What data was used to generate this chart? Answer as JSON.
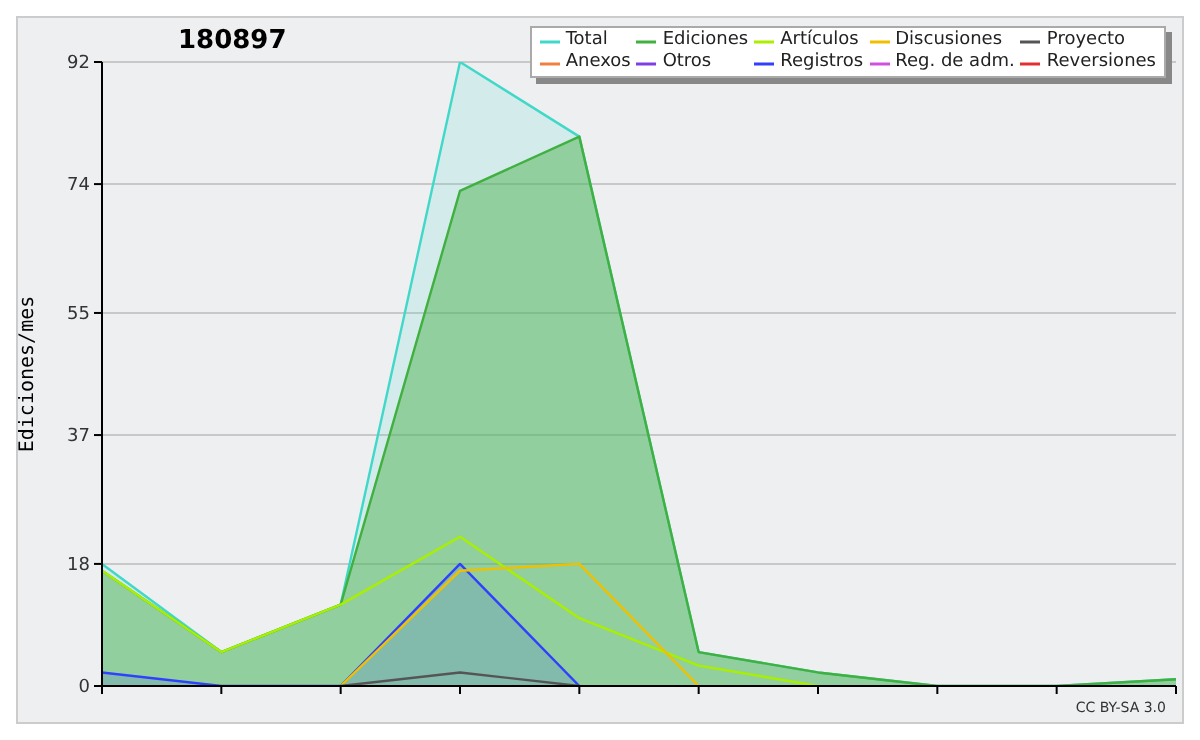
{
  "chart_data": {
    "type": "area",
    "title": "180897",
    "ylabel": "Ediciones/mes",
    "categories": [
      null,
      null,
      null,
      null,
      null,
      null,
      null,
      null,
      null,
      null
    ],
    "ylim": [
      0,
      92
    ],
    "yticks": [
      0,
      18,
      37,
      55,
      74,
      92
    ],
    "grid": "y",
    "legend": "top right",
    "tick_labels": "y",
    "annotations": [
      "CC BY-SA 3.0"
    ],
    "series": [
      {
        "name": "Total",
        "color": "#40d8c8",
        "values": [
          18,
          5,
          12,
          92,
          81,
          5,
          2,
          0,
          0,
          1
        ]
      },
      {
        "name": "Ediciones",
        "color": "#40b040",
        "values": [
          17,
          5,
          12,
          73,
          81,
          5,
          2,
          0,
          0,
          1
        ]
      },
      {
        "name": "Artículos",
        "type": "line",
        "color": "#aaee00",
        "values": [
          17,
          5,
          12,
          22,
          10,
          3,
          0,
          null,
          null,
          null
        ]
      },
      {
        "name": "Discusiones",
        "type": "line",
        "color": "#f0c000",
        "values": [
          null,
          null,
          0,
          17,
          18,
          0,
          null,
          null,
          null,
          null
        ]
      },
      {
        "name": "Proyecto",
        "type": "line",
        "color": "#555555",
        "values": [
          null,
          null,
          0,
          2,
          0,
          null,
          null,
          null,
          null,
          null
        ]
      },
      {
        "name": "Anexos",
        "type": "line",
        "color": "#f08040",
        "values": [
          null,
          null,
          null,
          null,
          null,
          null,
          null,
          null,
          null,
          null
        ]
      },
      {
        "name": "Otros",
        "type": "line",
        "color": "#8040e0",
        "values": [
          null,
          null,
          null,
          null,
          null,
          null,
          null,
          null,
          null,
          null
        ]
      },
      {
        "name": "Registros",
        "color": "#3040ff",
        "values": [
          2,
          0,
          0,
          18,
          0,
          null,
          null,
          null,
          null,
          null
        ]
      },
      {
        "name": "Reg. de adm.",
        "type": "line",
        "color": "#d050e0",
        "values": [
          null,
          null,
          null,
          null,
          null,
          null,
          null,
          null,
          null,
          null
        ]
      },
      {
        "name": "Reversiones",
        "type": "line",
        "color": "#e03030",
        "values": [
          null,
          null,
          null,
          null,
          null,
          null,
          null,
          null,
          null,
          null
        ]
      }
    ]
  }
}
